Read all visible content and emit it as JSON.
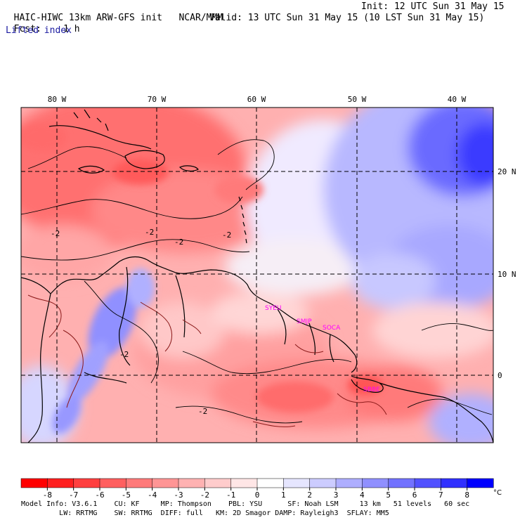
{
  "header": {
    "model_title": "HAIC-HIWC 13km ARW-GFS init",
    "org": "NCAR/MMM",
    "fcst_label": "Fcst:",
    "fcst_value": "1 h",
    "init": "Init: 12 UTC Sun 31 May 15",
    "valid": "Valid: 13 UTC Sun 31 May 15 (10 LST Sun 31 May 15)",
    "field": "Lifted index"
  },
  "map": {
    "lon_labels": [
      "80 W",
      "70 W",
      "60 W",
      "50 W",
      "40 W"
    ],
    "lat_labels": [
      "20 N",
      "10 N",
      "0"
    ],
    "contour_labels": [
      "-2",
      "-2",
      "-2",
      "-2",
      "-2",
      "-2"
    ],
    "stations": [
      "SYEU",
      "SMJP",
      "SOCA",
      "SBBE"
    ],
    "station_color": "#ff00ff"
  },
  "colorbar": {
    "ticks": [
      "-8",
      "-7",
      "-6",
      "-5",
      "-4",
      "-3",
      "-2",
      "-1",
      "0",
      "1",
      "2",
      "3",
      "4",
      "5",
      "6",
      "7",
      "8"
    ],
    "unit": "°C",
    "colors": [
      "#ff0000",
      "#ff1f1f",
      "#ff3f3f",
      "#ff5f5f",
      "#ff7a7a",
      "#ff9595",
      "#ffb2b2",
      "#ffcccc",
      "#ffe6e6",
      "#ffffff",
      "#e6e6ff",
      "#ccccff",
      "#aeaeff",
      "#9090ff",
      "#7272ff",
      "#5252ff",
      "#3030ff",
      "#0000ff"
    ]
  },
  "footer": {
    "line1": "Model Info: V3.6.1    CU: KF     MP: Thompson    PBL: YSU      SF: Noah LSM     13 km   51 levels   60 sec",
    "line2": "         LW: RRTMG    SW: RRTMG  DIFF: full   KM: 2D Smagor DAMP: Rayleigh3  SFLAY: MM5"
  }
}
